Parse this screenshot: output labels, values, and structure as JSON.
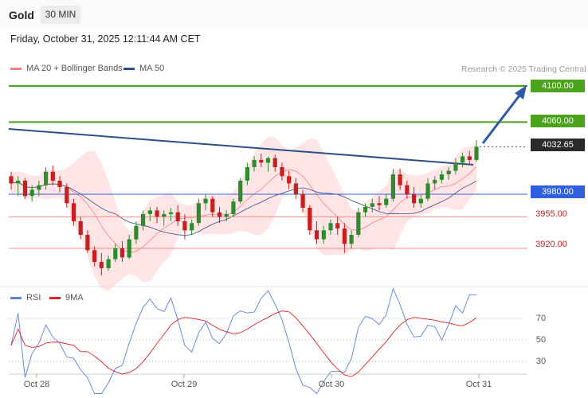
{
  "header": {
    "symbol": "Gold",
    "timeframe": "30 MIN"
  },
  "datetime": "Friday, October 31, 2025 12:11:44 AM CET",
  "legend": [
    {
      "label": "MA 20 + Bollinger Bands",
      "color": "#f08080"
    },
    {
      "label": "MA 50",
      "color": "#2c4f8a"
    }
  ],
  "copyright": "Research © 2025 Trading Central",
  "price_levels": [
    {
      "label": "4100.00",
      "value": 4100,
      "style": "green-box"
    },
    {
      "label": "4060.00",
      "value": 4060,
      "style": "green-box"
    },
    {
      "label": "4032.65",
      "value": 4032.65,
      "style": "dark-box"
    },
    {
      "label": "3980.00",
      "value": 3980,
      "style": "blue-box"
    },
    {
      "label": "3955.00",
      "value": 3955,
      "style": "red-text"
    },
    {
      "label": "3920.00",
      "value": 3920,
      "style": "red-text"
    }
  ],
  "rsi_legend": [
    {
      "label": "RSI",
      "color": "#5b7fe0"
    },
    {
      "label": "9MA",
      "color": "#e02020"
    }
  ],
  "colors": {
    "up": "#2e8b2e",
    "down": "#c81e1e",
    "green_level": "#4aa31a",
    "blue_level": "#3060e0",
    "red_level": "#f08a8a",
    "trend": "#2c4f8a",
    "band": "#ffd0d0"
  },
  "chart_data": [
    {
      "type": "candlestick",
      "title": "Gold 30 MIN",
      "x_labels": [
        "Oct 28",
        "Oct 29",
        "Oct 30",
        "Oct 31"
      ],
      "ylim": [
        3880,
        4125
      ],
      "ohlc_approx": [
        [
          4000,
          4005,
          3985,
          3992
        ],
        [
          3992,
          4000,
          3978,
          3995
        ],
        [
          3995,
          3998,
          3975,
          3978
        ],
        [
          3978,
          3990,
          3972,
          3985
        ],
        [
          3985,
          3995,
          3978,
          3990
        ],
        [
          3990,
          4010,
          3985,
          4005
        ],
        [
          4005,
          4012,
          3990,
          3995
        ],
        [
          3995,
          4000,
          3982,
          3988
        ],
        [
          3988,
          3992,
          3965,
          3970
        ],
        [
          3970,
          3975,
          3945,
          3950
        ],
        [
          3950,
          3955,
          3930,
          3935
        ],
        [
          3935,
          3940,
          3915,
          3918
        ],
        [
          3918,
          3922,
          3900,
          3905
        ],
        [
          3905,
          3915,
          3890,
          3898
        ],
        [
          3898,
          3912,
          3895,
          3908
        ],
        [
          3908,
          3925,
          3905,
          3920
        ],
        [
          3920,
          3928,
          3905,
          3910
        ],
        [
          3910,
          3935,
          3908,
          3930
        ],
        [
          3930,
          3950,
          3925,
          3945
        ],
        [
          3945,
          3962,
          3940,
          3958
        ],
        [
          3958,
          3966,
          3950,
          3962
        ],
        [
          3962,
          3966,
          3948,
          3955
        ],
        [
          3955,
          3962,
          3945,
          3958
        ],
        [
          3958,
          3965,
          3950,
          3960
        ],
        [
          3960,
          3968,
          3945,
          3950
        ],
        [
          3950,
          3958,
          3930,
          3940
        ],
        [
          3940,
          3952,
          3935,
          3948
        ],
        [
          3948,
          3975,
          3945,
          3970
        ],
        [
          3970,
          3980,
          3962,
          3975
        ],
        [
          3975,
          3978,
          3955,
          3960
        ],
        [
          3960,
          3966,
          3948,
          3955
        ],
        [
          3955,
          3962,
          3950,
          3958
        ],
        [
          3958,
          3975,
          3955,
          3972
        ],
        [
          3972,
          3998,
          3970,
          3995
        ],
        [
          3995,
          4015,
          3990,
          4010
        ],
        [
          4010,
          4022,
          4005,
          4018
        ],
        [
          4018,
          4025,
          4010,
          4015
        ],
        [
          4015,
          4022,
          4005,
          4020
        ],
        [
          4020,
          4024,
          4005,
          4010
        ],
        [
          4010,
          4015,
          3995,
          4000
        ],
        [
          4000,
          4006,
          3985,
          3992
        ],
        [
          3992,
          3998,
          3975,
          3980
        ],
        [
          3980,
          3985,
          3960,
          3965
        ],
        [
          3965,
          3968,
          3935,
          3940
        ],
        [
          3940,
          3950,
          3925,
          3930
        ],
        [
          3930,
          3945,
          3925,
          3940
        ],
        [
          3940,
          3952,
          3935,
          3948
        ],
        [
          3948,
          3955,
          3935,
          3942
        ],
        [
          3942,
          3948,
          3915,
          3925
        ],
        [
          3925,
          3940,
          3920,
          3935
        ],
        [
          3935,
          3965,
          3932,
          3960
        ],
        [
          3960,
          3970,
          3955,
          3966
        ],
        [
          3966,
          3975,
          3960,
          3970
        ],
        [
          3970,
          3978,
          3962,
          3968
        ],
        [
          3968,
          3980,
          3965,
          3975
        ],
        [
          3975,
          4008,
          3972,
          4002
        ],
        [
          4002,
          4008,
          3985,
          3990
        ],
        [
          3990,
          3995,
          3975,
          3980
        ],
        [
          3980,
          3988,
          3965,
          3970
        ],
        [
          3970,
          3978,
          3965,
          3975
        ],
        [
          3975,
          3998,
          3972,
          3992
        ],
        [
          3992,
          4000,
          3985,
          3996
        ],
        [
          3996,
          4006,
          3992,
          4002
        ],
        [
          4002,
          4010,
          3996,
          4006
        ],
        [
          4006,
          4020,
          4002,
          4015
        ],
        [
          4015,
          4026,
          4010,
          4022
        ],
        [
          4022,
          4028,
          4012,
          4018
        ],
        [
          4018,
          4040,
          4016,
          4032.65
        ]
      ]
    },
    {
      "type": "line",
      "title": "RSI",
      "series": [
        {
          "name": "RSI"
        },
        {
          "name": "9MA"
        }
      ],
      "y_ticks": [
        70,
        50,
        30
      ],
      "x_labels": [
        "Oct 28",
        "Oct 29",
        "Oct 30",
        "Oct 31"
      ]
    }
  ]
}
